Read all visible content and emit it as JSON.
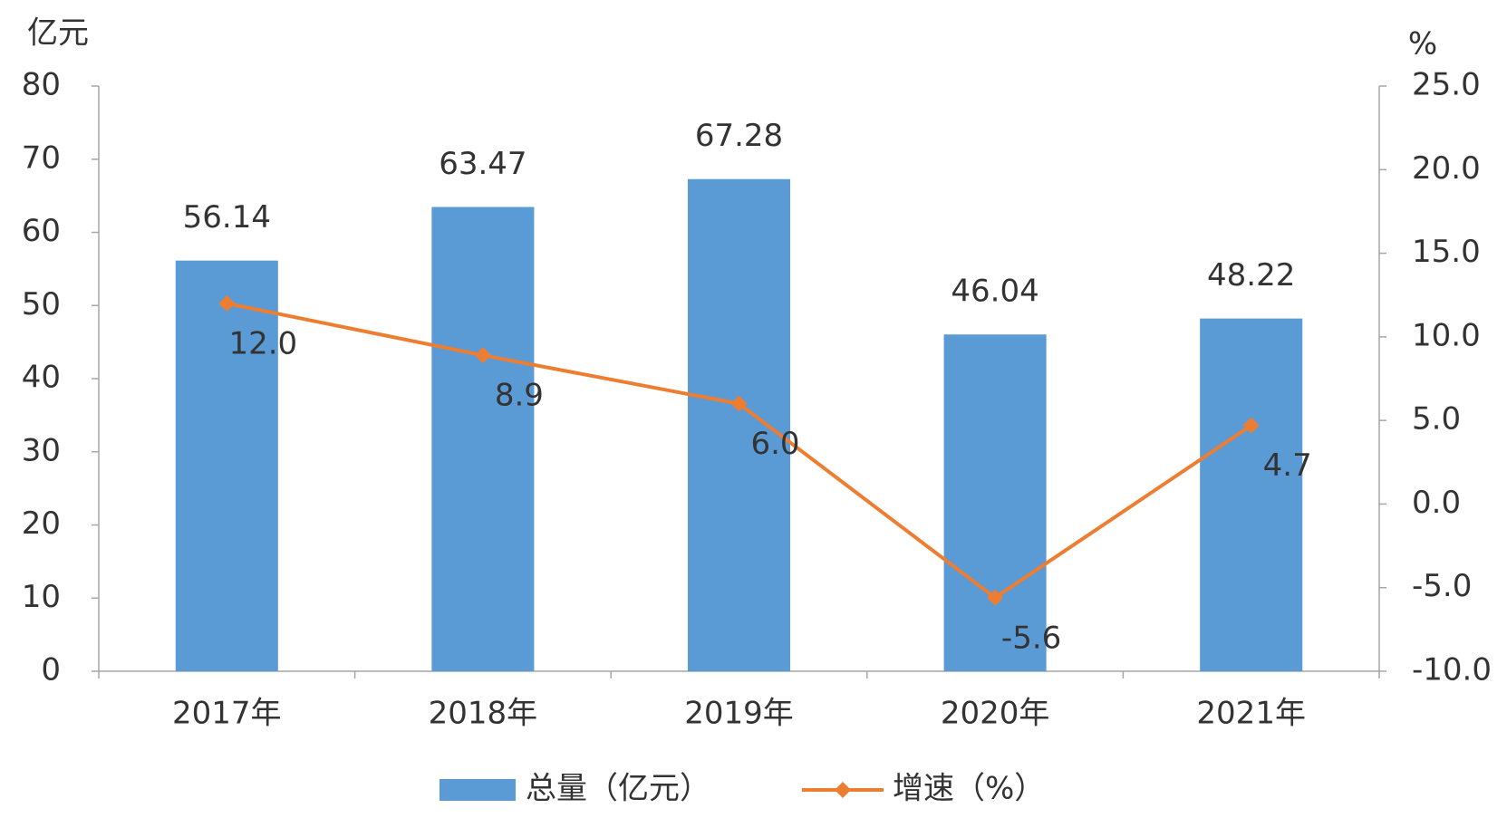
{
  "chart_data": {
    "type": "bar",
    "y_label": "亿元",
    "y2_label": "%",
    "categories": [
      "2017年",
      "2018年",
      "2019年",
      "2020年",
      "2021年"
    ],
    "series": [
      {
        "name": "总量（亿元）",
        "type": "bar",
        "color": "#5b9bd5",
        "values": [
          56.14,
          63.47,
          67.28,
          46.04,
          48.22
        ]
      },
      {
        "name": "增速（%）",
        "type": "line",
        "color": "#ed7d31",
        "axis": "y2",
        "values": [
          12.0,
          8.9,
          6.0,
          -5.6,
          4.7
        ],
        "value_labels": [
          "12.0",
          "8.9",
          "6.0",
          "-5.6",
          "4.7"
        ]
      }
    ],
    "ylim": [
      0,
      80
    ],
    "yticks": [
      0,
      10,
      20,
      30,
      40,
      50,
      60,
      70,
      80
    ],
    "y2lim": [
      -10,
      25
    ],
    "y2ticks": [
      {
        "value": -10,
        "label": "-10.0"
      },
      {
        "value": -5,
        "label": "-5.0"
      },
      {
        "value": 0,
        "label": "0.0"
      },
      {
        "value": 5,
        "label": "5.0"
      },
      {
        "value": 10,
        "label": "10.0"
      },
      {
        "value": 15,
        "label": "15.0"
      },
      {
        "value": 20,
        "label": "20.0"
      },
      {
        "value": 25,
        "label": "25.0"
      }
    ]
  }
}
